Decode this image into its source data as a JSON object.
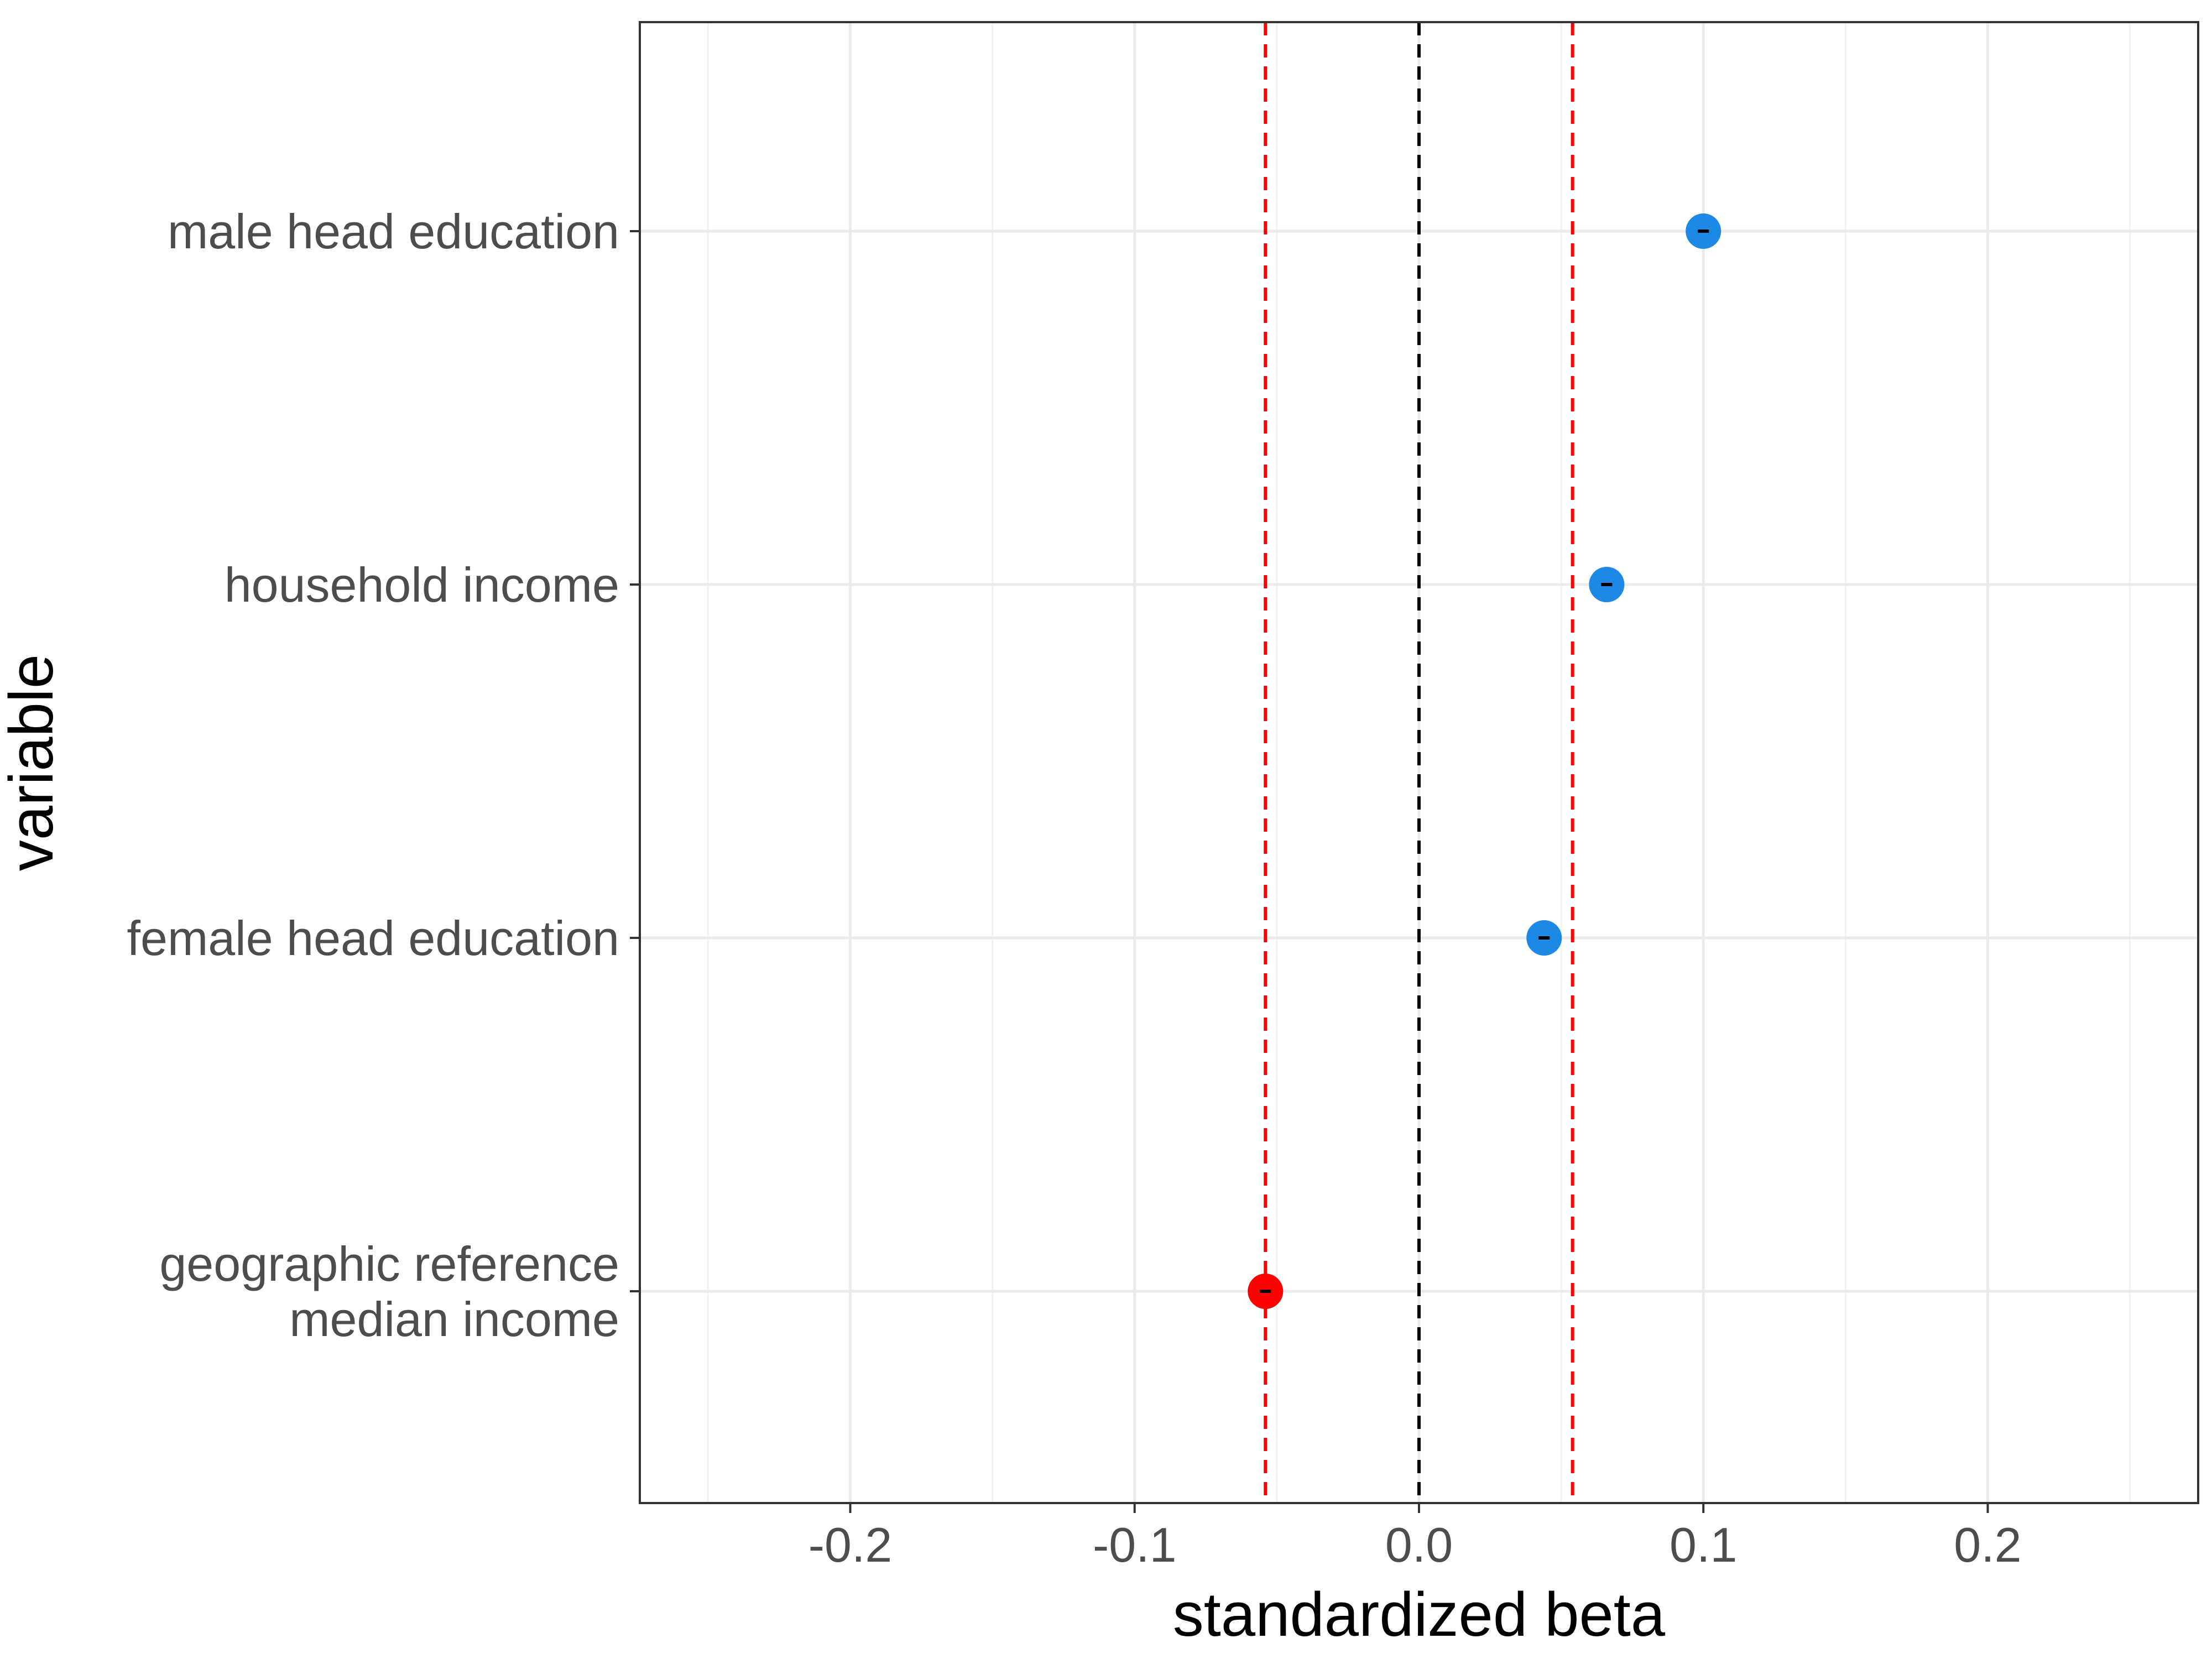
{
  "chart_data": {
    "type": "scatter",
    "xlabel": "standardized beta",
    "ylabel": "variable",
    "xlim": [
      -0.274,
      0.274
    ],
    "x_ticks": [
      "-0.2",
      "-0.1",
      "0.0",
      "0.1",
      "0.2"
    ],
    "x_tick_values": [
      -0.2,
      -0.1,
      0.0,
      0.1,
      0.2
    ],
    "x_minor_gridlines": [
      -0.25,
      -0.15,
      -0.05,
      0.05,
      0.15,
      0.25
    ],
    "categories": [
      [
        "geographic reference",
        "median income"
      ],
      [
        "female head education"
      ],
      [
        "household income"
      ],
      [
        "male head education"
      ]
    ],
    "points": [
      {
        "x": -0.054,
        "color": "#ff0000"
      },
      {
        "x": 0.044,
        "color": "#1e88e5"
      },
      {
        "x": 0.066,
        "color": "#1e88e5"
      },
      {
        "x": 0.1,
        "color": "#1e88e5"
      }
    ],
    "reference_lines": [
      {
        "x": 0.0,
        "color": "#000000",
        "style": "dashed"
      },
      {
        "x": -0.054,
        "color": "#ff0000",
        "style": "dashed"
      },
      {
        "x": 0.054,
        "color": "#ff0000",
        "style": "dashed"
      }
    ],
    "grid": true,
    "legend": "none"
  }
}
